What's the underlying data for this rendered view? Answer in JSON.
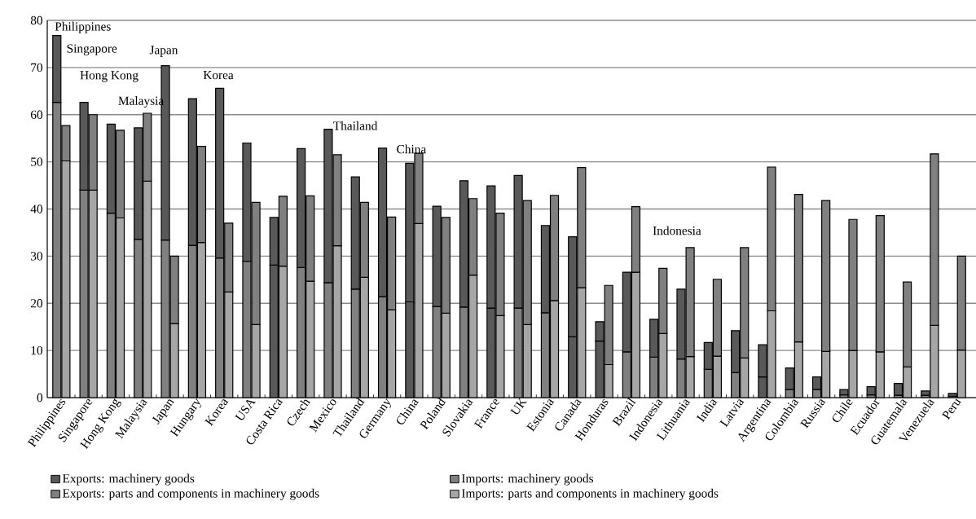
{
  "chart_data": {
    "type": "bar",
    "stacked": true,
    "categories": [
      "Philippines",
      null,
      null,
      "Singapore",
      null,
      null,
      "Hong Kong",
      null,
      null,
      "Malaysia",
      null,
      null,
      "Japan",
      null,
      null,
      "Hungary",
      null,
      null,
      "Korea",
      null,
      null,
      "USA",
      null,
      null,
      "Costa Rica",
      null,
      null,
      "Czech",
      null,
      null,
      "Mexico",
      null,
      null,
      "Thailand",
      null,
      null,
      "Germany",
      null,
      null,
      "China",
      null,
      null,
      "Poland",
      null,
      null,
      "Slovakia",
      null,
      null,
      "France",
      null,
      null,
      "UK",
      null,
      null,
      "Estonia",
      null,
      null,
      "Canada",
      null,
      null,
      "Honduras",
      null,
      null,
      "Brazil",
      null,
      null,
      "Indonesia",
      null,
      null,
      "Lithuania",
      null,
      null,
      "India",
      null,
      null,
      "Latvia",
      null,
      null,
      "Argentina",
      null,
      null,
      "Colombia",
      null,
      null,
      "Russia",
      null,
      null,
      "Chile",
      null,
      null,
      "Ecuador",
      null,
      null,
      "Guatemala",
      null,
      null,
      "Venezuela",
      null,
      null,
      "Peru",
      null,
      null
    ],
    "series": [
      {
        "name": "Exports: parts and components in machinery goods",
        "color": "#808080",
        "colors": [
          "#808080",
          null,
          null,
          "#808080",
          null,
          null,
          "#808080",
          null,
          null,
          "#808080",
          null,
          null,
          "#808080",
          null,
          null,
          "#808080",
          null,
          null,
          "#808080",
          null,
          null,
          "#808080",
          null,
          null,
          "#595959",
          null,
          null,
          "#808080",
          null,
          null,
          "#808080",
          null,
          null,
          "#808080",
          null,
          null,
          "#808080",
          null,
          null,
          "#595959",
          null,
          null,
          "#808080",
          null,
          null,
          "#808080",
          null,
          null,
          "#595959",
          null,
          null,
          "#808080",
          null,
          null,
          "#808080",
          null,
          null,
          "#595959",
          null,
          null,
          "#595959",
          null,
          null,
          "#808080",
          null,
          null,
          "#808080",
          null,
          null,
          "#808080",
          null,
          null,
          "#808080",
          null,
          null,
          "#808080",
          null,
          null,
          "#595959",
          null,
          null,
          "#808080",
          null,
          null,
          "#808080",
          null,
          null,
          "#808080",
          null,
          null,
          "#808080",
          null,
          null,
          "#808080",
          null,
          null,
          "#808080",
          null,
          null,
          "#808080",
          null,
          null
        ],
        "values": [
          62.6,
          null,
          null,
          44.0,
          null,
          null,
          39.1,
          null,
          null,
          33.6,
          null,
          null,
          33.4,
          null,
          null,
          32.3,
          null,
          null,
          29.6,
          null,
          null,
          28.9,
          null,
          null,
          28.1,
          null,
          null,
          27.6,
          null,
          null,
          24.4,
          null,
          null,
          23.0,
          null,
          null,
          21.4,
          null,
          null,
          20.3,
          null,
          null,
          19.3,
          null,
          null,
          19.2,
          null,
          null,
          19.0,
          null,
          null,
          19.0,
          null,
          null,
          18.0,
          null,
          null,
          12.9,
          null,
          null,
          12.0,
          null,
          null,
          9.7,
          null,
          null,
          8.6,
          null,
          null,
          8.2,
          null,
          null,
          6.0,
          null,
          null,
          5.3,
          null,
          null,
          4.4,
          null,
          null,
          1.7,
          null,
          null,
          1.7,
          null,
          null,
          0.6,
          null,
          null,
          0.6,
          null,
          null,
          0.5,
          null,
          null,
          0.5,
          null,
          null,
          0.3,
          null,
          null
        ]
      },
      {
        "name": "Exports: machinery goods",
        "color": "#595959",
        "values": [
          14.2,
          null,
          null,
          18.6,
          null,
          null,
          18.9,
          null,
          null,
          23.6,
          null,
          null,
          37.0,
          null,
          null,
          31.1,
          null,
          null,
          36.0,
          null,
          null,
          25.1,
          null,
          null,
          10.1,
          null,
          null,
          25.2,
          null,
          null,
          32.5,
          null,
          null,
          23.8,
          null,
          null,
          31.5,
          null,
          null,
          29.4,
          null,
          null,
          21.3,
          null,
          null,
          26.8,
          null,
          null,
          25.9,
          null,
          null,
          28.1,
          null,
          null,
          18.5,
          null,
          null,
          21.2,
          null,
          null,
          4.1,
          null,
          null,
          16.9,
          null,
          null,
          8.0,
          null,
          null,
          14.8,
          null,
          null,
          5.7,
          null,
          null,
          8.9,
          null,
          null,
          6.8,
          null,
          null,
          4.6,
          null,
          null,
          2.7,
          null,
          null,
          1.1,
          null,
          null,
          1.7,
          null,
          null,
          2.5,
          null,
          null,
          0.9,
          null,
          null,
          0.6,
          null,
          null
        ]
      },
      {
        "name": "Imports: parts and components in machinery goods",
        "color": "#a6a6a6",
        "values": [
          null,
          50.2,
          null,
          null,
          44.0,
          null,
          null,
          38.1,
          null,
          null,
          45.9,
          null,
          null,
          15.7,
          null,
          null,
          32.9,
          null,
          null,
          22.4,
          null,
          null,
          15.5,
          null,
          null,
          27.9,
          null,
          null,
          24.7,
          null,
          null,
          32.2,
          null,
          null,
          25.5,
          null,
          null,
          18.6,
          null,
          null,
          36.9,
          null,
          null,
          17.9,
          null,
          null,
          26.0,
          null,
          null,
          17.4,
          null,
          null,
          15.5,
          null,
          null,
          20.6,
          null,
          null,
          23.3,
          null,
          null,
          7.0,
          null,
          null,
          26.6,
          null,
          null,
          13.6,
          null,
          null,
          8.7,
          null,
          null,
          8.8,
          null,
          null,
          8.4,
          null,
          null,
          18.4,
          null,
          null,
          11.8,
          null,
          null,
          9.8,
          null,
          null,
          10.0,
          null,
          null,
          9.7,
          null,
          null,
          6.5,
          null,
          null,
          15.3,
          null,
          null,
          10.1,
          null
        ]
      },
      {
        "name": "Imports: machinery goods",
        "color": "#808080",
        "values": [
          null,
          7.5,
          null,
          null,
          16.0,
          null,
          null,
          18.6,
          null,
          null,
          14.4,
          null,
          null,
          14.3,
          null,
          null,
          20.4,
          null,
          null,
          14.6,
          null,
          null,
          25.9,
          null,
          null,
          14.8,
          null,
          null,
          18.1,
          null,
          null,
          19.3,
          null,
          null,
          15.9,
          null,
          null,
          19.7,
          null,
          null,
          14.9,
          null,
          null,
          20.3,
          null,
          null,
          16.2,
          null,
          null,
          21.7,
          null,
          null,
          26.3,
          null,
          null,
          22.3,
          null,
          null,
          25.5,
          null,
          null,
          16.8,
          null,
          null,
          13.9,
          null,
          null,
          13.8,
          null,
          null,
          23.1,
          null,
          null,
          16.3,
          null,
          null,
          23.4,
          null,
          null,
          30.5,
          null,
          null,
          31.3,
          null,
          null,
          32.0,
          null,
          null,
          27.8,
          null,
          null,
          28.9,
          null,
          null,
          18.0,
          null,
          null,
          36.4,
          null,
          null,
          19.9,
          null
        ]
      }
    ],
    "ylim": [
      0,
      80
    ],
    "yticks": [
      0,
      10,
      20,
      30,
      40,
      50,
      60,
      70,
      80
    ],
    "grid": "y",
    "legend": "bottom",
    "annotations": [
      "Philippines",
      "Singapore",
      "Hong Kong",
      "Malaysia",
      "Japan",
      "Korea",
      "Thailand",
      "China",
      "Indonesia"
    ]
  }
}
